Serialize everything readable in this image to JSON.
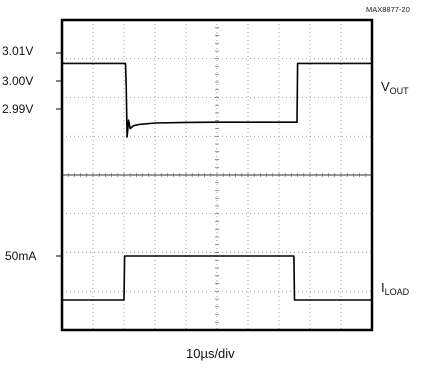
{
  "figure_ref": "MAX8877-20",
  "chart_data": {
    "type": "line",
    "title": "",
    "xlabel": "10µs/div",
    "divisions": {
      "x": 10,
      "y": 8
    },
    "series": [
      {
        "name_main": "V",
        "name_sub": "OUT",
        "units": "V",
        "tick_labels": [
          "3.01V",
          "3.00V",
          "2.99V"
        ],
        "tick_values": [
          3.01,
          3.0,
          2.99
        ],
        "x_div": [
          0,
          2.05,
          2.07,
          2.1,
          2.15,
          2.2,
          2.3,
          2.5,
          3.0,
          4.0,
          5.0,
          6.0,
          7.0,
          7.58,
          7.6,
          10
        ],
        "values": [
          3.0063,
          3.0063,
          2.9985,
          2.98,
          2.986,
          2.983,
          2.984,
          2.9845,
          2.985,
          2.9852,
          2.9853,
          2.9853,
          2.9853,
          2.9853,
          3.0063,
          3.0063
        ]
      },
      {
        "name_main": "I",
        "name_sub": "LOAD",
        "units": "mA",
        "tick_labels": [
          "50mA"
        ],
        "tick_values": [
          50
        ],
        "x_div": [
          0,
          2.0,
          2.02,
          7.48,
          7.5,
          10
        ],
        "values": [
          0,
          0,
          50,
          50,
          0,
          0
        ]
      }
    ]
  }
}
